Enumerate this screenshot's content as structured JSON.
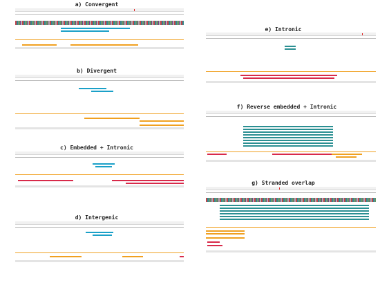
{
  "panels": [
    {
      "id": "a",
      "title": "a) Convergent"
    },
    {
      "id": "b",
      "title": "b) Divergent"
    },
    {
      "id": "c",
      "title": "c) Embedded + Intronic"
    },
    {
      "id": "d",
      "title": "d) Intergenic"
    },
    {
      "id": "e",
      "title": "e) Intronic"
    },
    {
      "id": "f",
      "title": "f) Reverse embedded + Intronic"
    },
    {
      "id": "g",
      "title": "g) Stranded overlap"
    }
  ],
  "colors": {
    "lncrna": "#1aa0c8",
    "gene_plus": "#f0a020",
    "gene_minus": "#d82a4a",
    "teal": "#2a8f92",
    "marker": "#e02020"
  }
}
